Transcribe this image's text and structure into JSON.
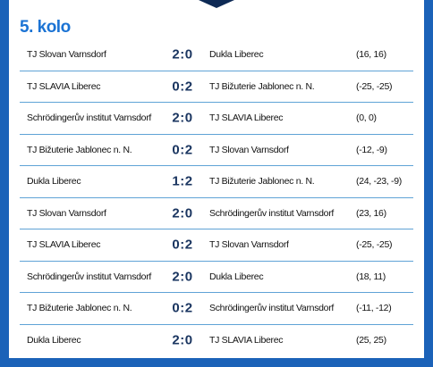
{
  "header": {
    "title": "5. kolo"
  },
  "table": {
    "rows": [
      [
        "TJ Slovan Varnsdorf",
        "2:0",
        "Dukla Liberec",
        "(16, 16)"
      ],
      [
        "TJ SLAVIA Liberec",
        "0:2",
        "TJ Bižuterie Jablonec n. N.",
        "(-25, -25)"
      ],
      [
        "Schrödingerův institut Varnsdorf",
        "2:0",
        "TJ SLAVIA Liberec",
        "(0, 0)"
      ],
      [
        "TJ Bižuterie Jablonec n. N.",
        "0:2",
        "TJ Slovan Varnsdorf",
        "(-12, -9)"
      ],
      [
        "Dukla Liberec",
        "1:2",
        "TJ Bižuterie Jablonec n. N.",
        "(24, -23, -9)"
      ],
      [
        "TJ Slovan Varnsdorf",
        "2:0",
        "Schrödingerův institut Varnsdorf",
        "(23, 16)"
      ],
      [
        "TJ SLAVIA Liberec",
        "0:2",
        "TJ Slovan Varnsdorf",
        "(-25, -25)"
      ],
      [
        "Schrödingerův institut Varnsdorf",
        "2:0",
        "Dukla Liberec",
        "(18, 11)"
      ],
      [
        "TJ Bižuterie Jablonec n. N.",
        "0:2",
        "Schrödingerův institut Varnsdorf",
        "(-11, -12)"
      ],
      [
        "Dukla Liberec",
        "2:0",
        "TJ SLAVIA Liberec",
        "(25, 25)"
      ]
    ]
  }
}
